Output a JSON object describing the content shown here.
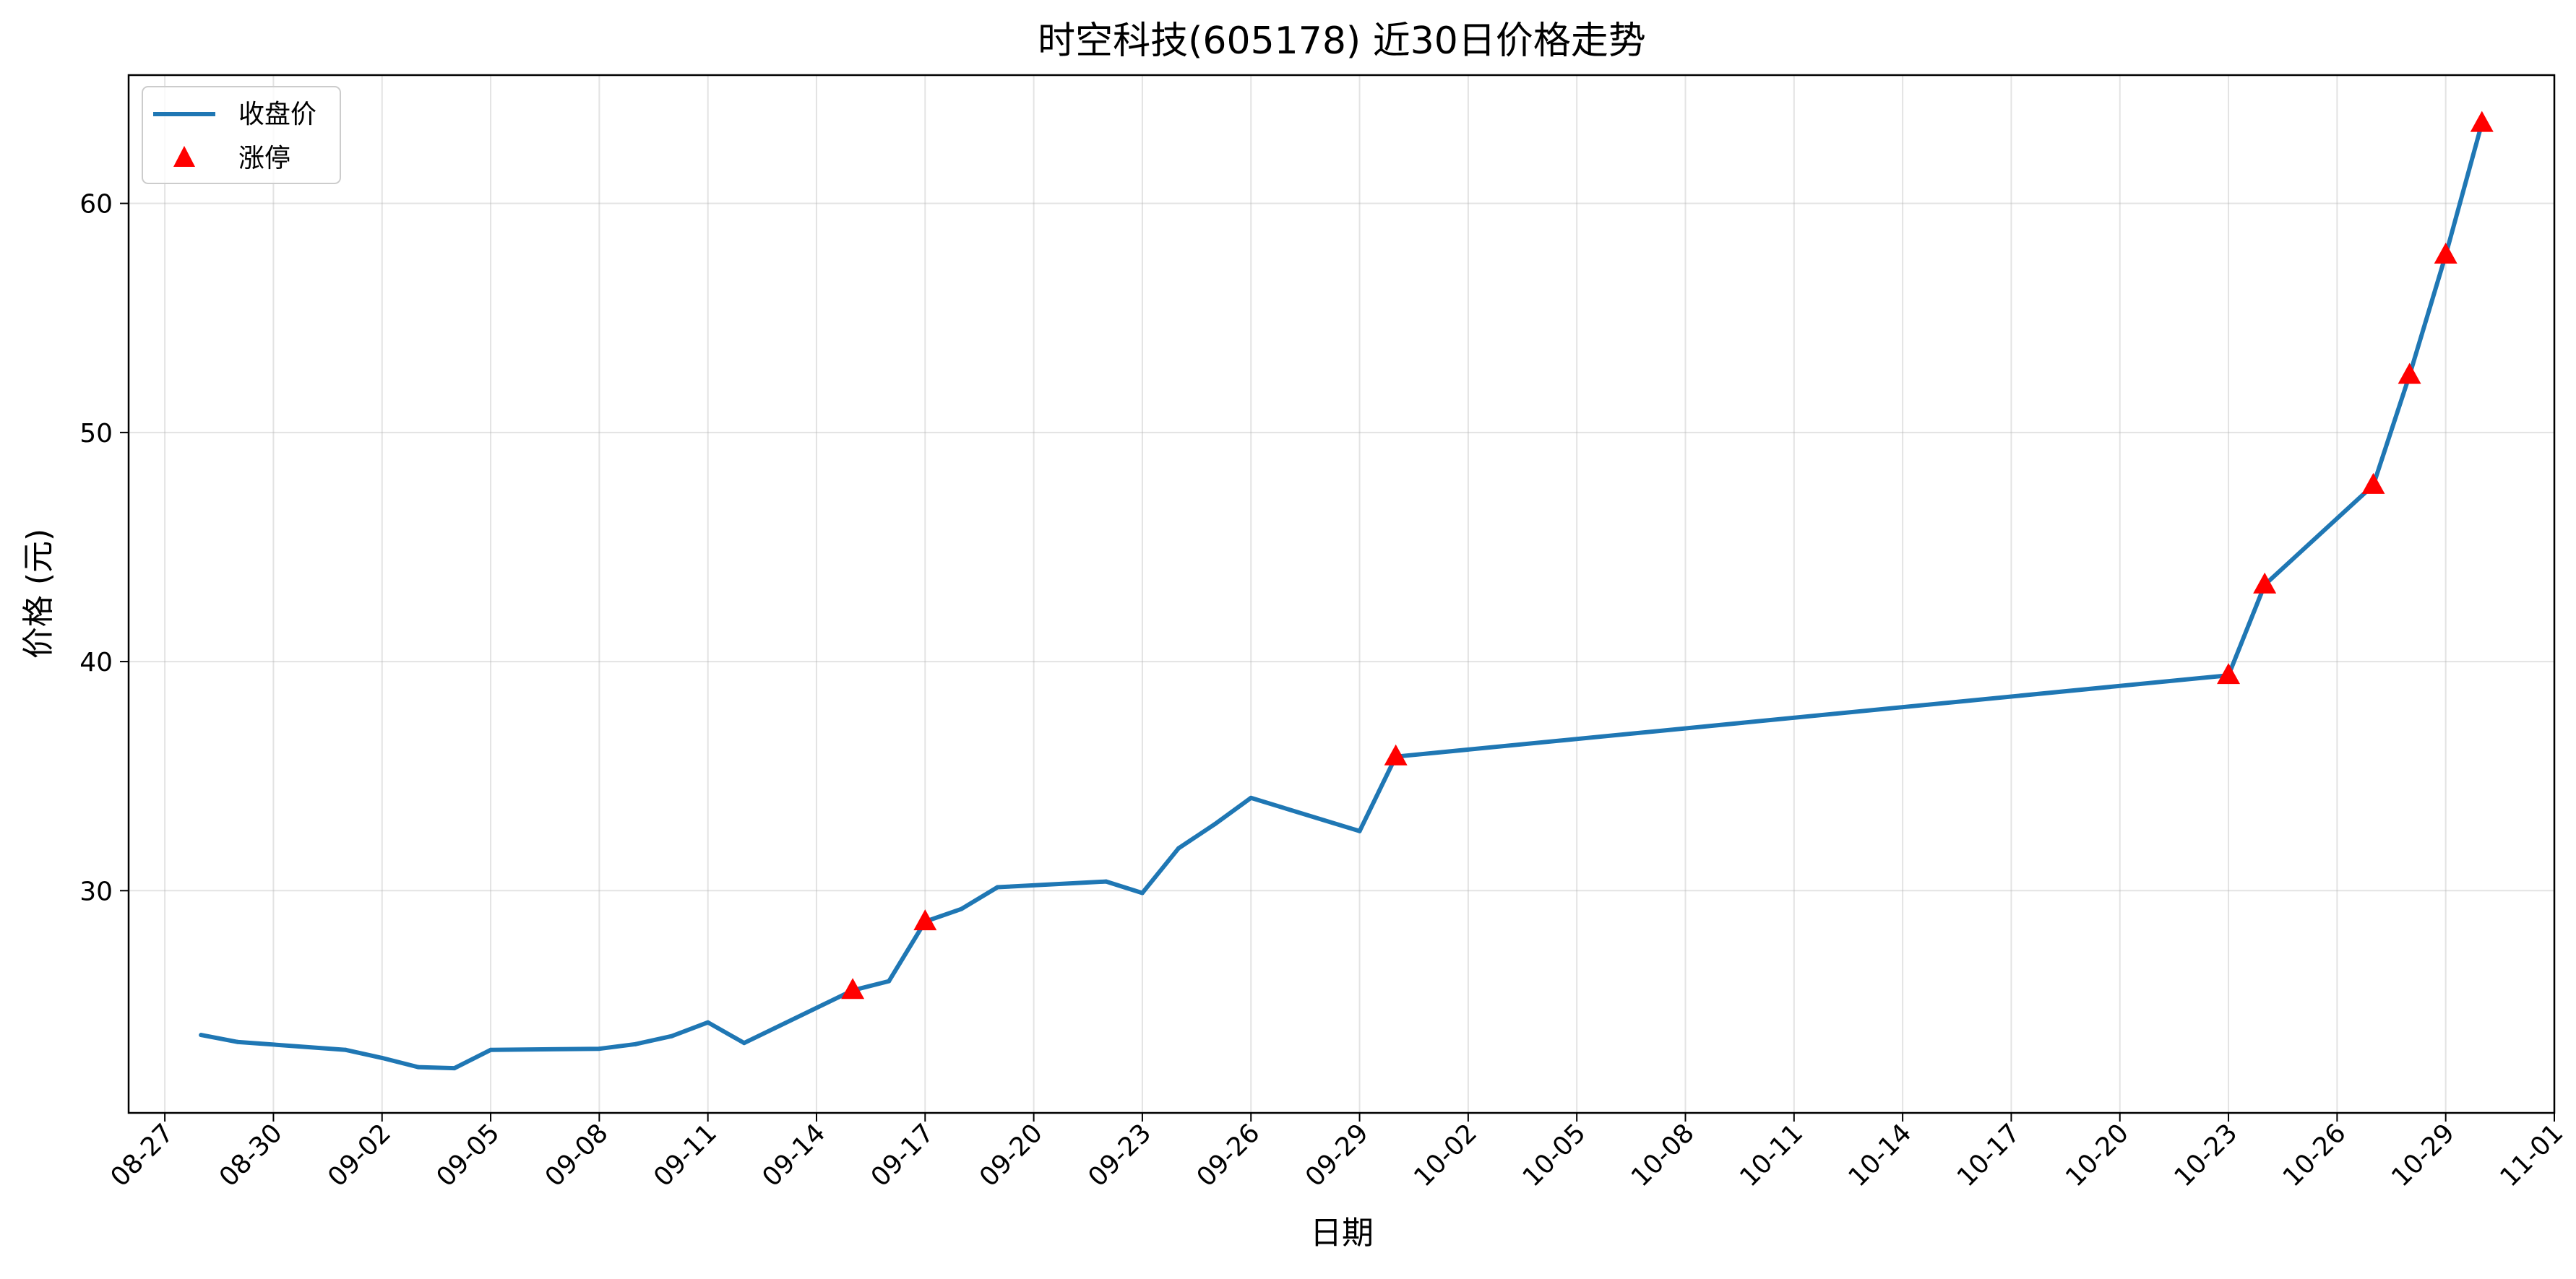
{
  "chart_data": {
    "type": "line",
    "title": "时空科技(605178) 近30日价格走势",
    "xlabel": "日期",
    "ylabel": "价格 (元)",
    "x_tick_labels": [
      "08-27",
      "08-30",
      "09-02",
      "09-05",
      "09-08",
      "09-11",
      "09-14",
      "09-17",
      "09-20",
      "09-23",
      "09-26",
      "09-29",
      "10-02",
      "10-05",
      "10-08",
      "10-11",
      "10-14",
      "10-17",
      "10-20",
      "10-23",
      "10-26",
      "10-29",
      "11-01"
    ],
    "y_tick_labels": [
      "30",
      "40",
      "50",
      "60"
    ],
    "ylim": [
      20.3,
      65.6
    ],
    "xlim": [
      "08-26",
      "11-01"
    ],
    "grid": true,
    "legend_position": "top-left",
    "legend": [
      {
        "label": "收盘价",
        "marker": "line",
        "color": "#1f77b4"
      },
      {
        "label": "涨停",
        "marker": "triangle",
        "color": "#ff0000"
      }
    ],
    "series": [
      {
        "name": "收盘价",
        "color": "#1f77b4",
        "x": [
          "08-28",
          "08-29",
          "09-01",
          "09-02",
          "09-03",
          "09-04",
          "09-05",
          "09-08",
          "09-09",
          "09-10",
          "09-11",
          "09-12",
          "09-15",
          "09-16",
          "09-17",
          "09-18",
          "09-19",
          "09-22",
          "09-23",
          "09-24",
          "09-25",
          "09-26",
          "09-29",
          "09-30",
          "10-23",
          "10-24",
          "10-27",
          "10-28",
          "10-29",
          "10-30"
        ],
        "y": [
          23.7,
          23.4,
          23.05,
          22.7,
          22.3,
          22.25,
          23.05,
          23.1,
          23.3,
          23.65,
          24.25,
          23.35,
          25.65,
          26.05,
          28.65,
          29.2,
          30.15,
          30.4,
          29.9,
          31.85,
          32.9,
          34.05,
          32.6,
          35.85,
          39.4,
          43.35,
          47.7,
          52.5,
          57.75,
          63.5
        ]
      },
      {
        "name": "涨停",
        "color": "#ff0000",
        "type": "scatter",
        "x": [
          "09-15",
          "09-17",
          "09-30",
          "10-23",
          "10-24",
          "10-27",
          "10-28",
          "10-29",
          "10-30"
        ],
        "y": [
          25.65,
          28.65,
          35.85,
          39.4,
          43.35,
          47.7,
          52.5,
          57.75,
          63.5
        ]
      }
    ]
  }
}
